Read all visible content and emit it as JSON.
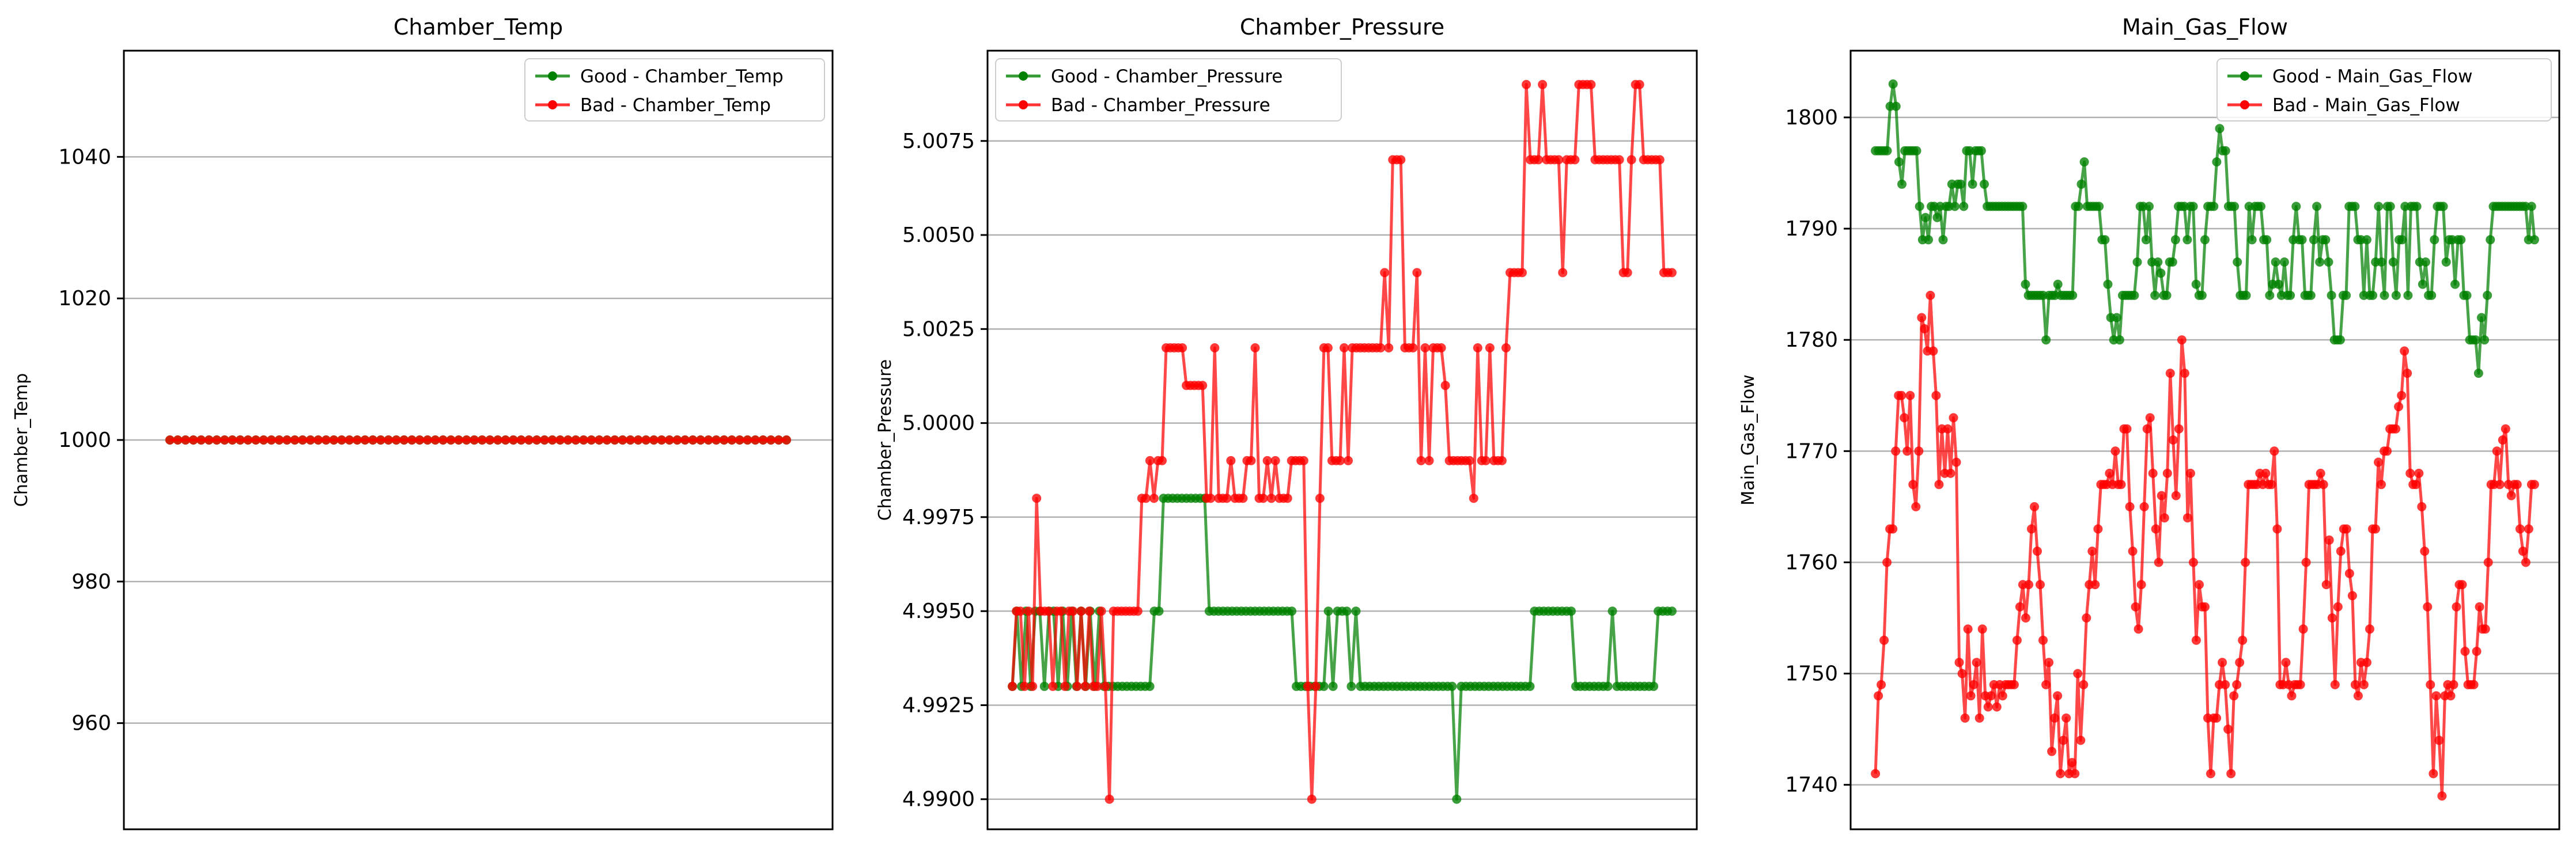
{
  "colors": {
    "good": "#008000",
    "bad": "#ff0000",
    "grid": "#b0b0b0",
    "frame": "#000000"
  },
  "chart_data": [
    {
      "type": "line",
      "title": "Chamber_Temp",
      "ylabel": "Chamber_Temp",
      "ylim": [
        945,
        1055
      ],
      "yticks": [
        960,
        980,
        1000,
        1020,
        1040
      ],
      "ytick_labels": [
        "960",
        "980",
        "1000",
        "1020",
        "1040"
      ],
      "grid": "y",
      "legend_position": "top-right",
      "series": [
        {
          "name": "Good - Chamber_Temp",
          "color": "#008000",
          "values": [
            1000,
            1000,
            1000,
            1000,
            1000,
            1000,
            1000,
            1000,
            1000,
            1000,
            1000,
            1000,
            1000,
            1000,
            1000,
            1000,
            1000,
            1000,
            1000,
            1000,
            1000,
            1000,
            1000,
            1000,
            1000,
            1000,
            1000,
            1000,
            1000,
            1000,
            1000,
            1000,
            1000,
            1000,
            1000,
            1000,
            1000,
            1000,
            1000,
            1000,
            1000,
            1000,
            1000,
            1000,
            1000,
            1000,
            1000,
            1000,
            1000,
            1000,
            1000,
            1000,
            1000,
            1000,
            1000,
            1000,
            1000,
            1000,
            1000,
            1000,
            1000,
            1000,
            1000,
            1000,
            1000,
            1000,
            1000,
            1000,
            1000,
            1000,
            1000,
            1000,
            1000,
            1000,
            1000,
            1000,
            1000,
            1000,
            1000,
            1000
          ]
        },
        {
          "name": "Bad - Chamber_Temp",
          "color": "#ff0000",
          "values": [
            1000,
            1000,
            1000,
            1000,
            1000,
            1000,
            1000,
            1000,
            1000,
            1000,
            1000,
            1000,
            1000,
            1000,
            1000,
            1000,
            1000,
            1000,
            1000,
            1000,
            1000,
            1000,
            1000,
            1000,
            1000,
            1000,
            1000,
            1000,
            1000,
            1000,
            1000,
            1000,
            1000,
            1000,
            1000,
            1000,
            1000,
            1000,
            1000,
            1000,
            1000,
            1000,
            1000,
            1000,
            1000,
            1000,
            1000,
            1000,
            1000,
            1000,
            1000,
            1000,
            1000,
            1000,
            1000,
            1000,
            1000,
            1000,
            1000,
            1000,
            1000,
            1000,
            1000,
            1000,
            1000,
            1000,
            1000,
            1000,
            1000,
            1000,
            1000,
            1000,
            1000,
            1000,
            1000,
            1000,
            1000,
            1000,
            1000,
            1000
          ]
        }
      ]
    },
    {
      "type": "line",
      "title": "Chamber_Pressure",
      "ylabel": "Chamber_Pressure",
      "ylim": [
        4.9892,
        5.0099
      ],
      "yticks": [
        4.99,
        4.9925,
        4.995,
        4.9975,
        5.0,
        5.0025,
        5.005,
        5.0075
      ],
      "ytick_labels": [
        "4.9900",
        "4.9925",
        "4.9950",
        "4.9975",
        "5.0000",
        "5.0025",
        "5.0050",
        "5.0075"
      ],
      "grid": "y",
      "legend_position": "top-left",
      "series": [
        {
          "name": "Good - Chamber_Pressure",
          "color": "#008000",
          "values": [
            4.993,
            4.995,
            4.993,
            4.995,
            4.993,
            4.995,
            4.995,
            4.993,
            4.995,
            4.995,
            4.993,
            4.995,
            4.993,
            4.995,
            4.993,
            4.995,
            4.993,
            4.995,
            4.993,
            4.995,
            4.993,
            4.993,
            4.993,
            4.993,
            4.993,
            4.993,
            4.993,
            4.993,
            4.993,
            4.993,
            4.993,
            4.995,
            4.995,
            4.998,
            4.998,
            4.998,
            4.998,
            4.998,
            4.998,
            4.998,
            4.998,
            4.998,
            4.998,
            4.995,
            4.995,
            4.995,
            4.995,
            4.995,
            4.995,
            4.995,
            4.995,
            4.995,
            4.995,
            4.995,
            4.995,
            4.995,
            4.995,
            4.995,
            4.995,
            4.995,
            4.995,
            4.995,
            4.993,
            4.993,
            4.993,
            4.993,
            4.993,
            4.993,
            4.993,
            4.995,
            4.993,
            4.995,
            4.995,
            4.995,
            4.993,
            4.995,
            4.993,
            4.993,
            4.993,
            4.993,
            4.993,
            4.993,
            4.993,
            4.993,
            4.993,
            4.993,
            4.993,
            4.993,
            4.993,
            4.993,
            4.993,
            4.993,
            4.993,
            4.993,
            4.993,
            4.993,
            4.993,
            4.99,
            4.993,
            4.993,
            4.993,
            4.993,
            4.993,
            4.993,
            4.993,
            4.993,
            4.993,
            4.993,
            4.993,
            4.993,
            4.993,
            4.993,
            4.993,
            4.993,
            4.995,
            4.995,
            4.995,
            4.995,
            4.995,
            4.995,
            4.995,
            4.995,
            4.995,
            4.993,
            4.993,
            4.993,
            4.993,
            4.993,
            4.993,
            4.993,
            4.993,
            4.995,
            4.993,
            4.993,
            4.993,
            4.993,
            4.993,
            4.993,
            4.993,
            4.993,
            4.993,
            4.995,
            4.995,
            4.995,
            4.995
          ]
        },
        {
          "name": "Bad - Chamber_Pressure",
          "color": "#ff0000",
          "values": [
            4.993,
            4.995,
            4.995,
            4.993,
            4.995,
            4.993,
            4.998,
            4.995,
            4.995,
            4.995,
            4.993,
            4.995,
            4.995,
            4.993,
            4.995,
            4.995,
            4.993,
            4.995,
            4.993,
            4.995,
            4.993,
            4.993,
            4.995,
            4.993,
            4.99,
            4.995,
            4.995,
            4.995,
            4.995,
            4.995,
            4.995,
            4.995,
            4.998,
            4.998,
            4.999,
            4.998,
            4.999,
            4.999,
            5.002,
            5.002,
            5.002,
            5.002,
            5.002,
            5.001,
            5.001,
            5.001,
            5.001,
            5.001,
            4.998,
            4.998,
            5.002,
            4.998,
            4.998,
            4.998,
            4.999,
            4.998,
            4.998,
            4.998,
            4.999,
            4.999,
            5.002,
            4.998,
            4.998,
            4.999,
            4.998,
            4.999,
            4.998,
            4.998,
            4.998,
            4.999,
            4.999,
            4.999,
            4.999,
            4.993,
            4.99,
            4.993,
            4.998,
            5.002,
            5.002,
            4.999,
            4.999,
            4.999,
            5.002,
            4.999,
            5.002,
            5.002,
            5.002,
            5.002,
            5.002,
            5.002,
            5.002,
            5.002,
            5.004,
            5.002,
            5.007,
            5.007,
            5.007,
            5.002,
            5.002,
            5.002,
            5.004,
            4.999,
            5.002,
            4.999,
            5.002,
            5.002,
            5.002,
            5.001,
            4.999,
            4.999,
            4.999,
            4.999,
            4.999,
            4.999,
            4.998,
            5.002,
            4.999,
            4.999,
            5.002,
            4.999,
            4.999,
            4.999,
            5.002,
            5.004,
            5.004,
            5.004,
            5.004,
            5.009,
            5.007,
            5.007,
            5.007,
            5.009,
            5.007,
            5.007,
            5.007,
            5.007,
            5.004,
            5.007,
            5.007,
            5.007,
            5.009,
            5.009,
            5.009,
            5.009,
            5.007,
            5.007,
            5.007,
            5.007,
            5.007,
            5.007,
            5.007,
            5.004,
            5.004,
            5.007,
            5.009,
            5.009,
            5.007,
            5.007,
            5.007,
            5.007,
            5.007,
            5.004,
            5.004,
            5.004
          ]
        }
      ]
    },
    {
      "type": "line",
      "title": "Main_Gas_Flow",
      "ylabel": "Main_Gas_Flow",
      "ylim": [
        1736,
        1806
      ],
      "yticks": [
        1740,
        1750,
        1760,
        1770,
        1780,
        1790,
        1800
      ],
      "ytick_labels": [
        "1740",
        "1750",
        "1760",
        "1770",
        "1780",
        "1790",
        "1800"
      ],
      "grid": "y",
      "legend_position": "top-right",
      "series": [
        {
          "name": "Good - Main_Gas_Flow",
          "color": "#008000",
          "values": [
            1797,
            1797,
            1797,
            1797,
            1797,
            1801,
            1803,
            1801,
            1796,
            1794,
            1797,
            1797,
            1797,
            1797,
            1797,
            1792,
            1789,
            1791,
            1789,
            1792,
            1792,
            1791,
            1792,
            1789,
            1792,
            1792,
            1794,
            1792,
            1794,
            1794,
            1792,
            1797,
            1797,
            1794,
            1797,
            1797,
            1797,
            1794,
            1792,
            1792,
            1792,
            1792,
            1792,
            1792,
            1792,
            1792,
            1792,
            1792,
            1792,
            1792,
            1792,
            1785,
            1784,
            1784,
            1784,
            1784,
            1784,
            1784,
            1780,
            1784,
            1784,
            1784,
            1785,
            1784,
            1784,
            1784,
            1784,
            1784,
            1792,
            1792,
            1794,
            1796,
            1792,
            1792,
            1792,
            1792,
            1792,
            1789,
            1789,
            1785,
            1782,
            1780,
            1782,
            1780,
            1784,
            1784,
            1784,
            1784,
            1784,
            1787,
            1792,
            1792,
            1789,
            1792,
            1787,
            1784,
            1787,
            1786,
            1784,
            1784,
            1787,
            1787,
            1789,
            1792,
            1792,
            1792,
            1789,
            1792,
            1792,
            1785,
            1784,
            1784,
            1789,
            1792,
            1792,
            1792,
            1796,
            1799,
            1797,
            1797,
            1792,
            1792,
            1792,
            1787,
            1784,
            1784,
            1784,
            1792,
            1789,
            1792,
            1792,
            1792,
            1789,
            1789,
            1784,
            1785,
            1787,
            1785,
            1784,
            1787,
            1784,
            1784,
            1789,
            1792,
            1789,
            1789,
            1784,
            1784,
            1784,
            1789,
            1792,
            1787,
            1789,
            1789,
            1787,
            1784,
            1780,
            1780,
            1780,
            1784,
            1784,
            1792,
            1792,
            1792,
            1789,
            1789,
            1784,
            1789,
            1784,
            1784,
            1787,
            1792,
            1787,
            1784,
            1792,
            1792,
            1787,
            1784,
            1789,
            1789,
            1792,
            1784,
            1792,
            1792,
            1792,
            1787,
            1785,
            1787,
            1784,
            1784,
            1789,
            1792,
            1792,
            1792,
            1787,
            1789,
            1789,
            1785,
            1789,
            1789,
            1784,
            1784,
            1780,
            1780,
            1780,
            1777,
            1782,
            1780,
            1784,
            1789,
            1792,
            1792,
            1792,
            1792,
            1792,
            1792,
            1792,
            1792,
            1792,
            1792,
            1792,
            1792,
            1789,
            1792,
            1789
          ]
        },
        {
          "name": "Bad - Main_Gas_Flow",
          "color": "#ff0000",
          "values": [
            1741,
            1748,
            1749,
            1753,
            1760,
            1763,
            1763,
            1770,
            1775,
            1775,
            1773,
            1770,
            1775,
            1767,
            1765,
            1770,
            1782,
            1781,
            1779,
            1784,
            1779,
            1775,
            1767,
            1772,
            1768,
            1772,
            1768,
            1773,
            1769,
            1751,
            1750,
            1746,
            1754,
            1748,
            1749,
            1751,
            1746,
            1754,
            1748,
            1747,
            1748,
            1749,
            1747,
            1749,
            1748,
            1749,
            1749,
            1749,
            1749,
            1753,
            1756,
            1758,
            1755,
            1758,
            1763,
            1765,
            1761,
            1758,
            1753,
            1749,
            1751,
            1743,
            1746,
            1748,
            1741,
            1744,
            1746,
            1741,
            1742,
            1741,
            1750,
            1744,
            1749,
            1755,
            1758,
            1761,
            1758,
            1763,
            1767,
            1767,
            1767,
            1768,
            1767,
            1770,
            1767,
            1767,
            1772,
            1772,
            1765,
            1761,
            1756,
            1754,
            1758,
            1765,
            1772,
            1773,
            1768,
            1763,
            1760,
            1766,
            1764,
            1768,
            1777,
            1771,
            1766,
            1772,
            1780,
            1777,
            1764,
            1768,
            1760,
            1753,
            1758,
            1756,
            1756,
            1746,
            1741,
            1746,
            1746,
            1749,
            1751,
            1749,
            1745,
            1741,
            1748,
            1749,
            1751,
            1753,
            1760,
            1767,
            1767,
            1767,
            1767,
            1768,
            1767,
            1768,
            1767,
            1767,
            1770,
            1763,
            1749,
            1749,
            1751,
            1749,
            1748,
            1749,
            1749,
            1749,
            1754,
            1760,
            1767,
            1767,
            1767,
            1767,
            1768,
            1767,
            1758,
            1762,
            1755,
            1749,
            1756,
            1761,
            1763,
            1763,
            1759,
            1757,
            1749,
            1748,
            1751,
            1749,
            1751,
            1754,
            1763,
            1763,
            1769,
            1767,
            1770,
            1770,
            1772,
            1772,
            1772,
            1774,
            1775,
            1779,
            1777,
            1768,
            1767,
            1767,
            1768,
            1765,
            1761,
            1756,
            1749,
            1741,
            1748,
            1744,
            1739,
            1748,
            1749,
            1748,
            1749,
            1756,
            1758,
            1758,
            1752,
            1749,
            1749,
            1749,
            1752,
            1756,
            1754,
            1754,
            1760,
            1767,
            1767,
            1770,
            1767,
            1771,
            1772,
            1767,
            1766,
            1767,
            1767,
            1763,
            1761,
            1760,
            1763,
            1767,
            1767
          ]
        }
      ]
    }
  ]
}
